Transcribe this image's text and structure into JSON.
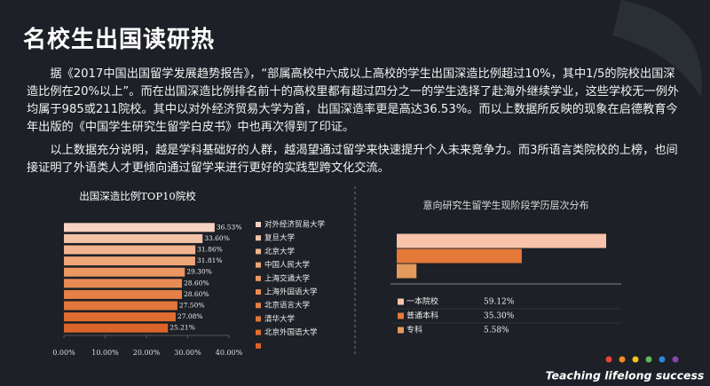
{
  "header": {
    "title": "名校生出国读研热"
  },
  "paragraphs": [
    "据《2017中国出国留学发展趋势报告》，“部属高校中六成以上高校的学生出国深造比例超过10%，其中1/5的院校出国深造比例在20%以上”。而在出国深造比例排名前十的高校里都有超过四分之一的学生选择了赴海外继续学业，这些学校无一例外均属于985或211院校。其中以对外经济贸易大学为首，出国深造率更是高达36.53%。而以上数据所反映的现象在启德教育今年出版的《中国学生研究生留学白皮书》中也再次得到了印证。",
    "以上数据充分说明，越是学科基础好的人群，越渴望通过留学来快速提升个人未来竞争力。而3所语言类院校的上榜，也间接证明了外语类人才更倾向通过留学来进行更好的实践型跨文化交流。"
  ],
  "chart_data": [
    {
      "type": "bar",
      "title": "出国深造比例TOP10院校",
      "categories": [
        "对外经济贸易大学",
        "复旦大学",
        "北京大学",
        "中国人民大学",
        "上海交通大学",
        "上海外国语大学",
        "北京语言大学",
        "清华大学",
        "北京外国语大学",
        null
      ],
      "values": [
        36.53,
        33.6,
        31.86,
        31.81,
        29.3,
        28.6,
        28.6,
        27.5,
        27.08,
        25.21
      ],
      "value_labels": [
        "36.53%",
        "33.60%",
        "31.86%",
        "31.81%",
        "29.30%",
        "28.60%",
        "28.60%",
        "27.50%",
        "27.08%",
        "25.21%"
      ],
      "colors": [
        "#f6d2c2",
        "#f3c3a8",
        "#f1b48f",
        "#eea577",
        "#eb9762",
        "#e88b52",
        "#e58046",
        "#e2763b",
        "#df6d31",
        "#db6428"
      ],
      "xlim": [
        0,
        40
      ],
      "xticks": [
        {
          "value": 0,
          "label": "0.00%"
        },
        {
          "value": 10,
          "label": "10.00%"
        },
        {
          "value": 20,
          "label": "20.00%"
        },
        {
          "value": 30,
          "label": "30.00%"
        },
        {
          "value": 40,
          "label": "40.00%"
        }
      ]
    },
    {
      "type": "bar",
      "title": "意向研究生留学生现阶段学历层次分布",
      "categories": [
        "一本院校",
        "普通本科",
        "专科"
      ],
      "values": [
        59.12,
        35.3,
        5.58
      ],
      "value_labels": [
        "59.12%",
        "35.30%",
        "5.58%"
      ],
      "colors": [
        "#f7c3ab",
        "#e5793a",
        "#e39a5c"
      ]
    }
  ],
  "footer": {
    "slogan": "Teaching lifelong success"
  }
}
